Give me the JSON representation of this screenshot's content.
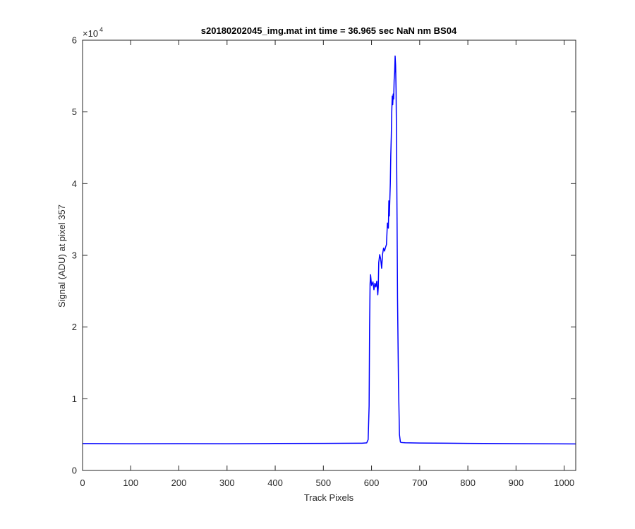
{
  "chart_data": {
    "type": "line",
    "title": "s20180202045_img.mat int time = 36.965 sec  NaN nm BS04",
    "xlabel": "Track Pixels",
    "ylabel": "Signal (ADU) at pixel 357",
    "xlim": [
      0,
      1024
    ],
    "ylim": [
      0,
      60000
    ],
    "y_exponent_base": "×10",
    "y_exponent_power": "4",
    "x_ticks": [
      0,
      100,
      200,
      300,
      400,
      500,
      600,
      700,
      800,
      900,
      1000
    ],
    "x_tick_labels": [
      "0",
      "100",
      "200",
      "300",
      "400",
      "500",
      "600",
      "700",
      "800",
      "900",
      "1000"
    ],
    "y_ticks": [
      0,
      10000,
      20000,
      30000,
      40000,
      50000,
      60000
    ],
    "y_tick_labels": [
      "0",
      "1",
      "2",
      "3",
      "4",
      "5",
      "6"
    ],
    "grid": false,
    "series": [
      {
        "color": "#0000ff",
        "x": [
          0,
          100,
          200,
          300,
          400,
          500,
          580,
          590,
          593,
          595,
          596,
          597,
          598,
          600,
          603,
          605,
          607,
          609,
          611,
          613,
          614,
          615,
          617,
          619,
          621,
          623,
          625,
          627,
          629,
          631,
          633,
          635,
          636,
          637,
          639,
          640,
          641,
          642,
          643,
          644,
          645,
          646,
          647,
          648,
          649,
          650,
          651,
          652,
          653,
          654,
          656,
          658,
          660,
          662,
          665,
          670,
          700,
          800,
          900,
          1024
        ],
        "y": [
          3750,
          3720,
          3740,
          3720,
          3760,
          3780,
          3800,
          3850,
          4300,
          9000,
          20000,
          26000,
          27300,
          25800,
          26300,
          25200,
          26100,
          25600,
          26400,
          24500,
          25500,
          29000,
          30100,
          29500,
          28200,
          30200,
          31000,
          30600,
          31100,
          31500,
          34500,
          33800,
          37600,
          35500,
          40000,
          44000,
          46500,
          50000,
          52200,
          51000,
          52500,
          51800,
          54500,
          55500,
          57800,
          56500,
          53000,
          45000,
          35000,
          24000,
          12000,
          5000,
          3950,
          3900,
          3880,
          3860,
          3820,
          3780,
          3740,
          3700
        ]
      }
    ]
  }
}
